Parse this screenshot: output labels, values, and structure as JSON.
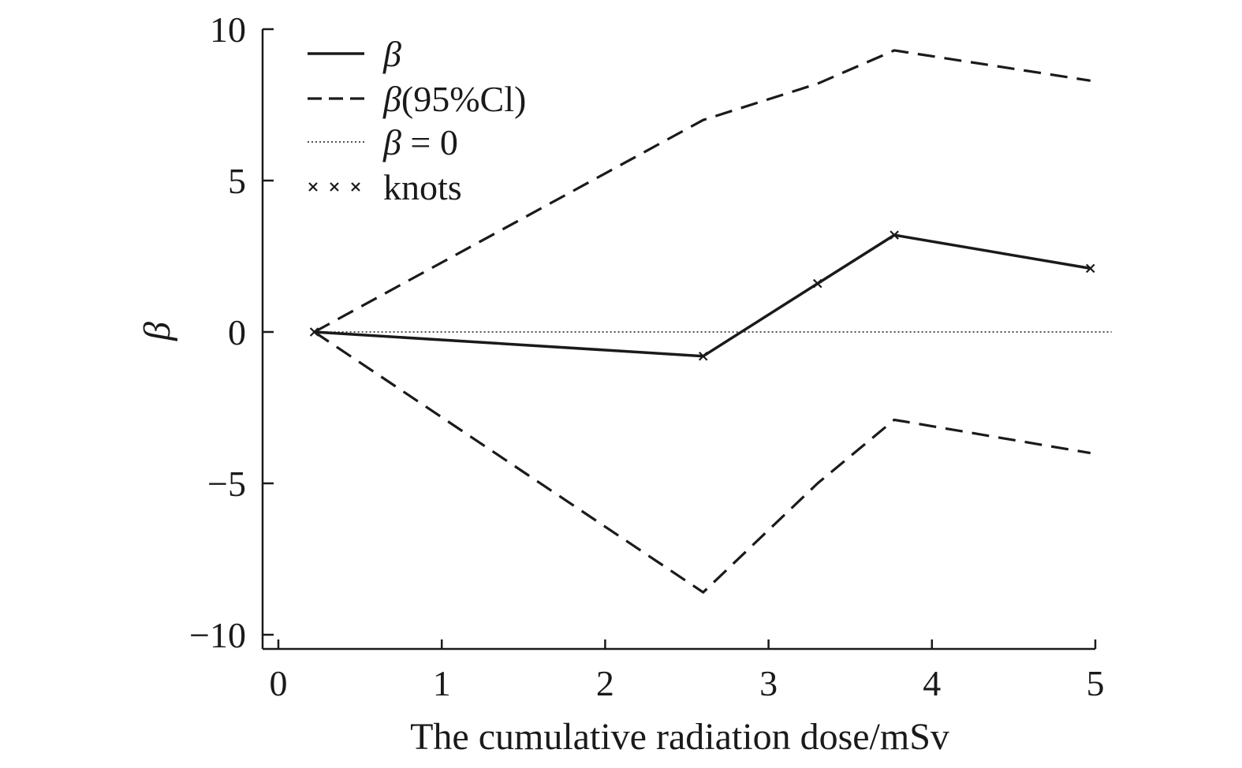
{
  "chart_data": {
    "type": "line",
    "title": "",
    "xlabel": "The cumulative radiation dose/mSv",
    "ylabel": "β",
    "xlim": [
      -0.1,
      5
    ],
    "ylim": [
      -10.5,
      10
    ],
    "x_ticks": [
      0,
      1,
      2,
      3,
      4,
      5
    ],
    "y_ticks": [
      -10,
      -5,
      0,
      5,
      10
    ],
    "x_tick_labels": [
      "0",
      "1",
      "2",
      "3",
      "4",
      "5"
    ],
    "y_tick_labels": [
      "−10",
      "−5",
      "0",
      "5",
      "10"
    ],
    "grid": false,
    "legend_position": "top-left",
    "series": [
      {
        "name": "β",
        "style": "solid",
        "x": [
          0.22,
          2.6,
          3.3,
          3.77,
          4.97
        ],
        "y": [
          0.0,
          -0.8,
          1.6,
          3.2,
          2.1
        ]
      },
      {
        "name": "β(95%Cl) upper",
        "style": "dashed",
        "x": [
          0.22,
          2.6,
          3.3,
          3.77,
          4.97
        ],
        "y": [
          0.0,
          7.0,
          8.2,
          9.3,
          8.3
        ]
      },
      {
        "name": "β(95%Cl) lower",
        "style": "dashed",
        "x": [
          0.22,
          2.6,
          3.3,
          3.77,
          4.97
        ],
        "y": [
          0.0,
          -8.6,
          -5.0,
          -2.9,
          -4.0
        ]
      },
      {
        "name": "β = 0",
        "style": "dotted",
        "x": [
          0.22,
          5.1
        ],
        "y": [
          0,
          0
        ]
      }
    ],
    "knots": {
      "name": "knots",
      "x": [
        0.22,
        2.6,
        3.3,
        3.77,
        4.97
      ],
      "y": [
        0.0,
        -0.8,
        1.6,
        3.2,
        2.1
      ]
    },
    "legend": [
      {
        "key": "beta",
        "style": "solid",
        "italic_part": "β",
        "rest": ""
      },
      {
        "key": "ci",
        "style": "dashed",
        "italic_part": "β",
        "rest": "(95%Cl)"
      },
      {
        "key": "zero",
        "style": "dotted",
        "italic_part": "β",
        "rest": " = 0"
      },
      {
        "key": "knots",
        "style": "markers",
        "italic_part": "",
        "rest": "knots"
      }
    ]
  }
}
